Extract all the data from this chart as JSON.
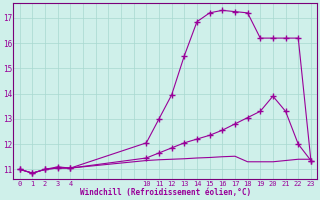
{
  "xlabel": "Windchill (Refroidissement éolien,°C)",
  "background_color": "#cff0ea",
  "grid_color": "#a8d8d0",
  "line_color": "#990099",
  "xlim": [
    -0.5,
    23.5
  ],
  "ylim": [
    10.6,
    17.6
  ],
  "yticks": [
    11,
    12,
    13,
    14,
    15,
    16,
    17
  ],
  "x_label_ticks": [
    0,
    1,
    2,
    3,
    4,
    10,
    11,
    12,
    13,
    14,
    15,
    16,
    17,
    18,
    19,
    20,
    21,
    22,
    23
  ],
  "x_grid_ticks": [
    0,
    1,
    2,
    3,
    4,
    5,
    6,
    7,
    8,
    9,
    10,
    11,
    12,
    13,
    14,
    15,
    16,
    17,
    18,
    19,
    20,
    21,
    22,
    23
  ],
  "line1_x": [
    0,
    1,
    2,
    3,
    4,
    10,
    11,
    12,
    13,
    14,
    15,
    16,
    17,
    18,
    19,
    20,
    21,
    22,
    23
  ],
  "line1_y": [
    11.0,
    10.85,
    11.0,
    11.1,
    11.05,
    12.05,
    13.0,
    13.95,
    15.5,
    16.85,
    17.2,
    17.3,
    17.25,
    17.2,
    16.2,
    16.2,
    16.2,
    16.2,
    11.35
  ],
  "line2_x": [
    0,
    1,
    2,
    3,
    4,
    10,
    11,
    12,
    13,
    14,
    15,
    16,
    17,
    18,
    19,
    20,
    21,
    22,
    23
  ],
  "line2_y": [
    11.0,
    10.85,
    11.0,
    11.05,
    11.05,
    11.45,
    11.65,
    11.85,
    12.05,
    12.2,
    12.35,
    12.55,
    12.8,
    13.05,
    13.3,
    13.9,
    13.3,
    12.0,
    11.35
  ],
  "line3_x": [
    0,
    1,
    2,
    3,
    4,
    5,
    6,
    7,
    8,
    9,
    10,
    11,
    12,
    13,
    14,
    15,
    16,
    17,
    18,
    19,
    20,
    21,
    22,
    23
  ],
  "line3_y": [
    11.0,
    10.85,
    11.0,
    11.05,
    11.05,
    11.1,
    11.15,
    11.2,
    11.25,
    11.3,
    11.35,
    11.38,
    11.4,
    11.42,
    11.45,
    11.47,
    11.5,
    11.52,
    11.3,
    11.3,
    11.3,
    11.35,
    11.4,
    11.4
  ]
}
